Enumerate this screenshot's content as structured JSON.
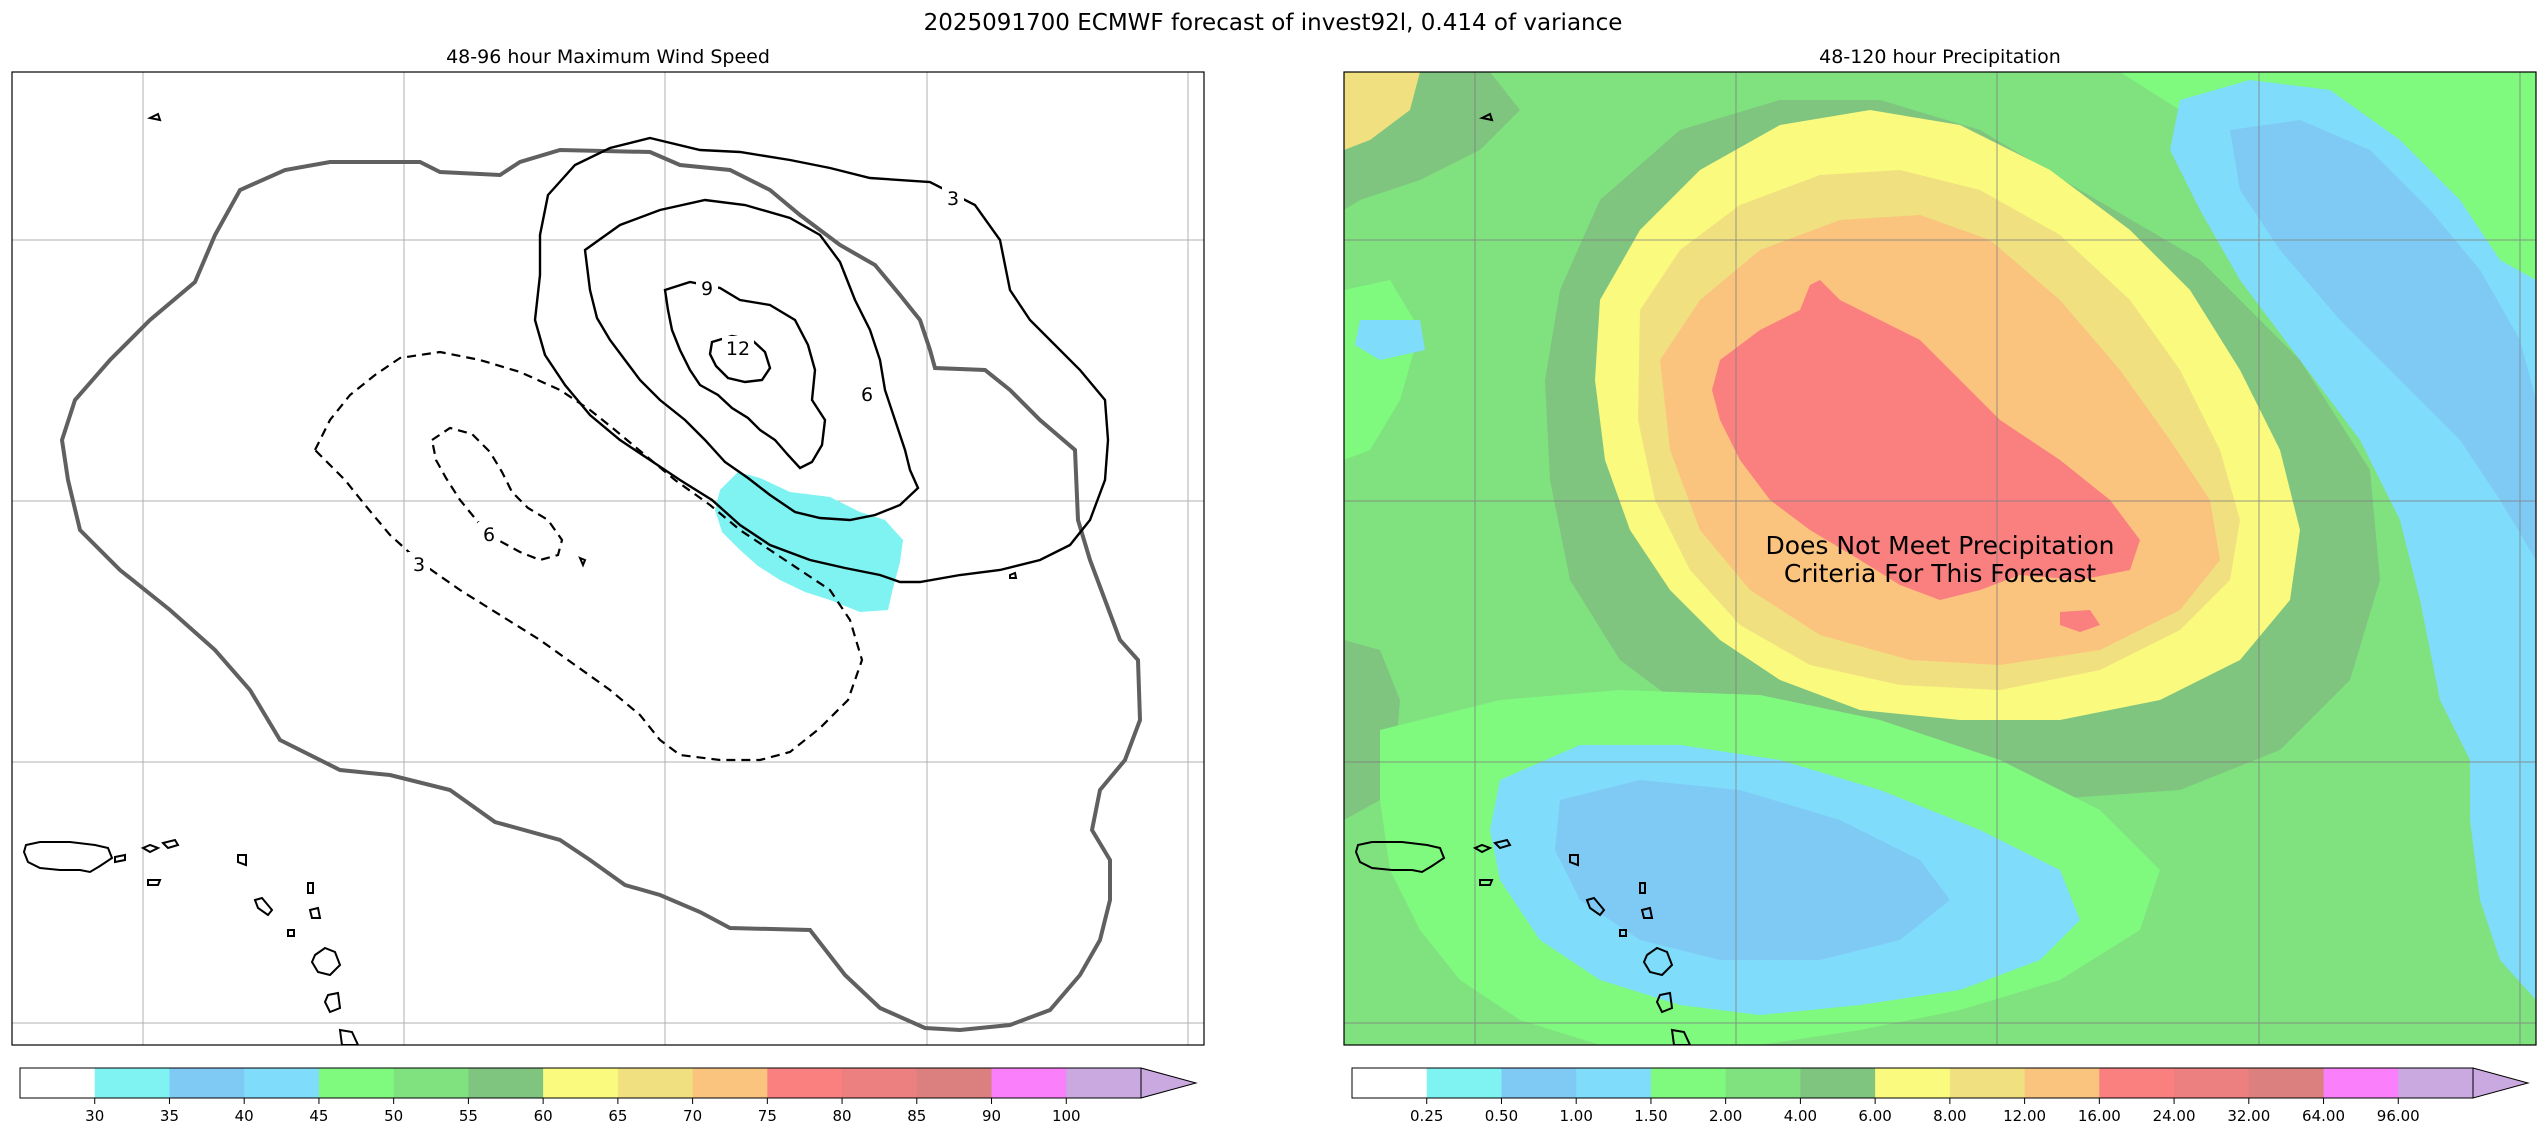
{
  "figure": {
    "title": "2025091700 ECMWF forecast of invest92l, 0.414 of variance"
  },
  "chart_data": [
    {
      "type": "contour",
      "title": "48-96 hour Maximum Wind Speed",
      "filled_regions": [
        {
          "level_range": [
            30,
            35
          ],
          "color": "#7ff2f2",
          "description": "small area south-east of center"
        }
      ],
      "contour_lines": [
        {
          "label": "3",
          "style": "solid"
        },
        {
          "label": "9",
          "style": "solid"
        },
        {
          "label": "12",
          "style": "solid"
        },
        {
          "label": "6",
          "style": "solid"
        },
        {
          "label": "6",
          "style": "dashed"
        },
        {
          "label": "3",
          "style": "dashed"
        }
      ],
      "colorbar": {
        "levels": [
          "30",
          "35",
          "40",
          "45",
          "50",
          "55",
          "60",
          "65",
          "70",
          "75",
          "80",
          "85",
          "90",
          "100"
        ],
        "colors": [
          "#ffffff",
          "#7ff2f2",
          "#7fcaf5",
          "#7fdcfa",
          "#7ffa7f",
          "#7fe27f",
          "#7fc47f",
          "#fafa7f",
          "#f0e07f",
          "#fac47f",
          "#fa7f7f",
          "#ec7f7f",
          "#dc7f7f",
          "#fa7ffa",
          "#caa8e0"
        ],
        "extend": "max"
      },
      "grid": true
    },
    {
      "type": "heatmap",
      "title": "48-120 hour Precipitation",
      "annotation": [
        "Does Not Meet Precipitation",
        "Criteria For This Forecast"
      ],
      "colorbar": {
        "levels": [
          "0.25",
          "0.50",
          "1.00",
          "1.50",
          "2.00",
          "4.00",
          "6.00",
          "8.00",
          "12.00",
          "16.00",
          "24.00",
          "32.00",
          "64.00",
          "96.00"
        ],
        "colors": [
          "#ffffff",
          "#7ff2f2",
          "#7fcaf5",
          "#7fdcfa",
          "#7ffa7f",
          "#7fe27f",
          "#7fc47f",
          "#fafa7f",
          "#f0e07f",
          "#fac47f",
          "#fa7f7f",
          "#ec7f7f",
          "#dc7f7f",
          "#fa7ffa",
          "#caa8e0"
        ],
        "extend": "max"
      },
      "grid": true
    }
  ]
}
